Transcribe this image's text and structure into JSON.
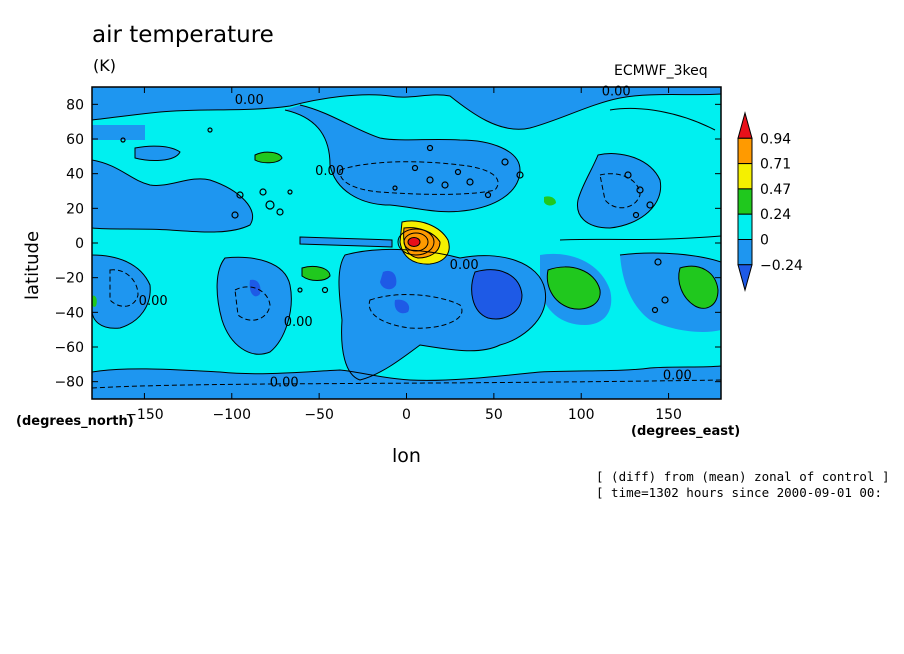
{
  "chart_data": {
    "type": "contour_map",
    "title": "air temperature",
    "units": "(K)",
    "source_label": "ECMWF_3keq",
    "xlabel": "lon",
    "ylabel": "latitude",
    "x_units": "(degrees_east)",
    "y_units": "(degrees_north)",
    "xlim": [
      -180,
      180
    ],
    "ylim": [
      -90,
      90
    ],
    "x_ticks": [
      -150,
      -100,
      -50,
      0,
      50,
      100,
      150
    ],
    "y_ticks": [
      80,
      60,
      40,
      20,
      0,
      -20,
      -40,
      -60,
      -80
    ],
    "colorbar": {
      "levels": [
        0.94,
        0.71,
        0.47,
        0.24,
        0,
        -0.24
      ],
      "colors": [
        "#e8101a",
        "#ff9a00",
        "#f5f000",
        "#20c81e",
        "#00f0f0",
        "#1e96f0",
        "#1e5ae6"
      ],
      "tick_labels": [
        "0.94",
        "0.71",
        "0.47",
        "0.24",
        "0",
        "-0.24"
      ]
    },
    "contour_labels": [
      {
        "text": "0.00",
        "lon": -90,
        "lat": 83
      },
      {
        "text": "0.00",
        "lon": 120,
        "lat": 88
      },
      {
        "text": "0.00",
        "lon": -70,
        "lat": -80
      },
      {
        "text": "0.00",
        "lon": 155,
        "lat": -76
      },
      {
        "text": "0.00",
        "lon": 33,
        "lat": -12
      },
      {
        "text": "0.00",
        "lon": -145,
        "lat": -33
      },
      {
        "text": "0.00",
        "lon": -62,
        "lat": -45
      },
      {
        "text": "0.00",
        "lon": -44,
        "lat": 42
      }
    ],
    "notes": [
      "[ (diff) from (mean) zonal of control ]",
      "[ time=1302 hours since 2000-09-01 00:"
    ]
  }
}
